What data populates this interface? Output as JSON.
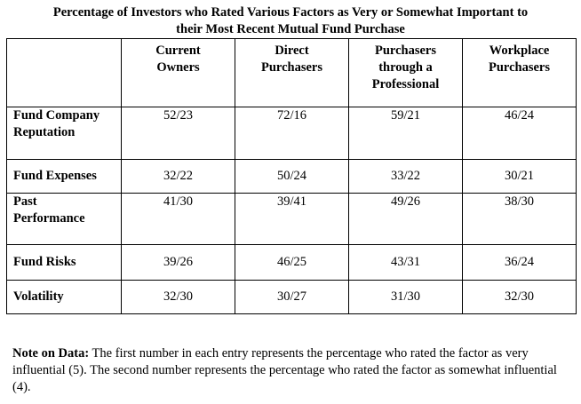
{
  "title": {
    "line1": "Percentage of Investors who Rated Various Factors as Very or Somewhat Important to",
    "line2": "their Most Recent Mutual Fund Purchase"
  },
  "table": {
    "columns": [
      [
        "Current",
        "Owners"
      ],
      [
        "Direct",
        "Purchasers"
      ],
      [
        "Purchasers",
        "through a",
        "Professional"
      ],
      [
        "Workplace",
        "Purchasers"
      ]
    ],
    "rows": [
      {
        "label": [
          "Fund Company",
          "Reputation"
        ],
        "values": [
          "52/23",
          "72/16",
          "59/21",
          "46/24"
        ]
      },
      {
        "label": [
          "Fund Expenses"
        ],
        "values": [
          "32/22",
          "50/24",
          "33/22",
          "30/21"
        ]
      },
      {
        "label": [
          "Past",
          "Performance"
        ],
        "values": [
          "41/30",
          "39/41",
          "49/26",
          "38/30"
        ]
      },
      {
        "label": [
          "Fund Risks"
        ],
        "values": [
          "39/26",
          "46/25",
          "43/31",
          "36/24"
        ]
      },
      {
        "label": [
          "Volatility"
        ],
        "values": [
          "32/30",
          "30/27",
          "31/30",
          "32/30"
        ]
      }
    ]
  },
  "note": {
    "label": "Note on Data:",
    "text": " The first number in each entry represents the percentage who rated the factor as very influential (5).  The second number represents the percentage who rated the factor as somewhat influential (4)."
  }
}
